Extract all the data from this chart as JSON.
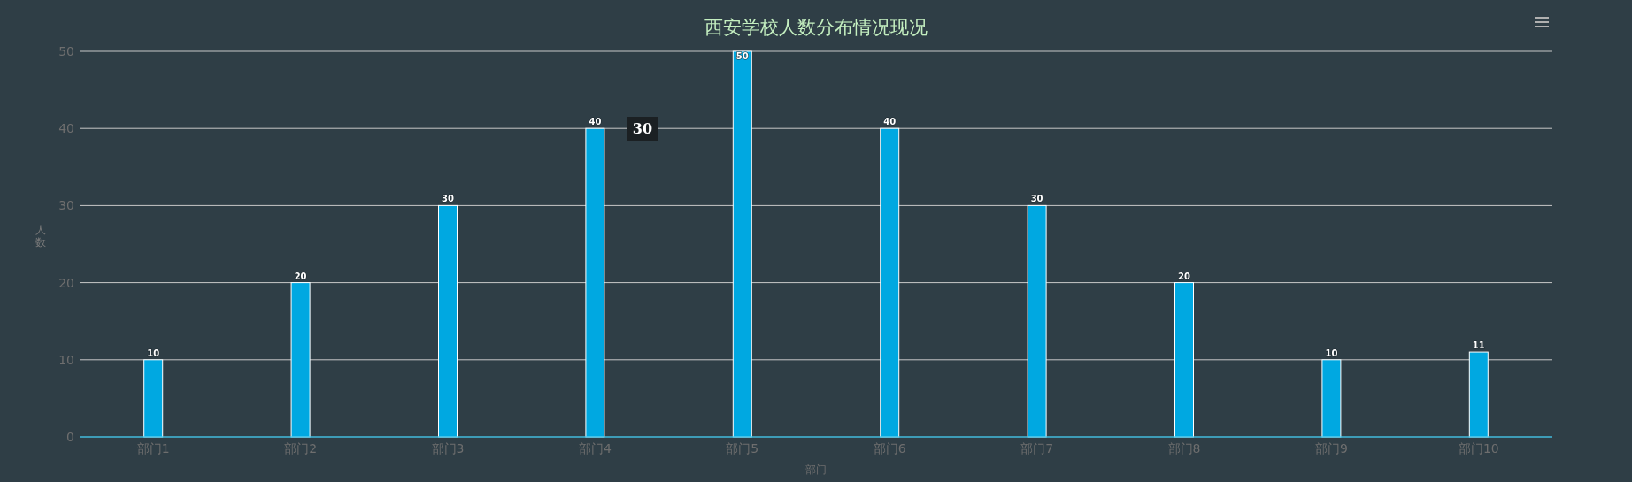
{
  "chart_data": {
    "type": "bar",
    "title": "西安学校人数分布情况现况",
    "xlabel": "部门",
    "ylabel": "人数",
    "categories": [
      "部门1",
      "部门2",
      "部门3",
      "部门4",
      "部门5",
      "部门6",
      "部门7",
      "部门8",
      "部门9",
      "部门10"
    ],
    "values": [
      10,
      20,
      30,
      40,
      50,
      40,
      30,
      20,
      10,
      11
    ],
    "color": "#00a8e1",
    "ylim": [
      0,
      50
    ],
    "yticks": [
      0,
      10,
      20,
      30,
      40,
      50
    ],
    "grid": "y",
    "data_labels": true,
    "annotations": [
      "30"
    ]
  }
}
